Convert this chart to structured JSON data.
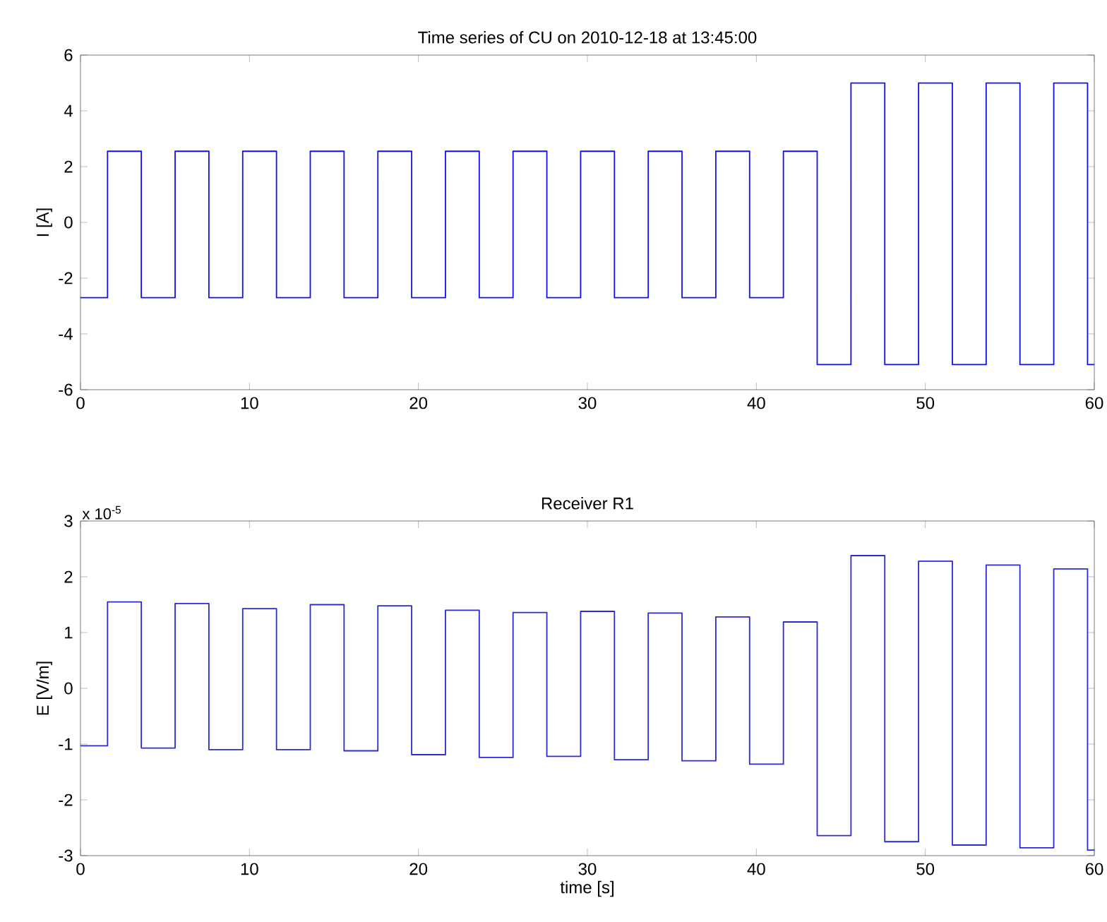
{
  "chart_data": [
    {
      "type": "line",
      "title": "Time series of CU on 2010-12-18 at 13:45:00",
      "ylabel": "I [A]",
      "color": "#1010f0",
      "x": [
        0,
        1.6,
        1.6,
        3.6,
        3.6,
        5.6,
        5.6,
        7.6,
        7.6,
        9.6,
        9.6,
        11.6,
        11.6,
        13.6,
        13.6,
        15.6,
        15.6,
        17.6,
        17.6,
        19.6,
        19.6,
        21.6,
        21.6,
        23.6,
        23.6,
        25.6,
        25.6,
        27.6,
        27.6,
        29.6,
        29.6,
        31.6,
        31.6,
        33.6,
        33.6,
        35.6,
        35.6,
        37.6,
        37.6,
        39.6,
        39.6,
        41.6,
        41.6,
        43.6,
        43.6,
        45.6,
        45.6,
        47.6,
        47.6,
        49.6,
        49.6,
        51.6,
        51.6,
        53.6,
        53.6,
        55.6,
        55.6,
        57.6,
        57.6,
        59.6,
        59.6,
        60
      ],
      "values": [
        -2.7,
        -2.7,
        2.55,
        2.55,
        -2.7,
        -2.7,
        2.55,
        2.55,
        -2.7,
        -2.7,
        2.55,
        2.55,
        -2.7,
        -2.7,
        2.55,
        2.55,
        -2.7,
        -2.7,
        2.55,
        2.55,
        -2.7,
        -2.7,
        2.55,
        2.55,
        -2.7,
        -2.7,
        2.55,
        2.55,
        -2.7,
        -2.7,
        2.55,
        2.55,
        -2.7,
        -2.7,
        2.55,
        2.55,
        -2.7,
        -2.7,
        2.55,
        2.55,
        -2.7,
        -2.7,
        2.55,
        2.55,
        -5.1,
        -5.1,
        5,
        5,
        -5.1,
        -5.1,
        5,
        5,
        -5.1,
        -5.1,
        5,
        5,
        -5.1,
        -5.1,
        5,
        5,
        -5.1,
        -5.1
      ],
      "xlim": [
        0,
        60
      ],
      "ylim": [
        -6,
        6
      ],
      "xticks": [
        0,
        10,
        20,
        30,
        40,
        50,
        60
      ],
      "yticks": [
        -6,
        -4,
        -2,
        0,
        2,
        4,
        6
      ],
      "grid": false,
      "marker": "none",
      "line_style": "solid"
    },
    {
      "type": "line",
      "title": "Receiver R1",
      "xlabel": "time [s]",
      "ylabel": "E [V/m]",
      "color": "#2a2ad8",
      "annotations": [
        "x 10$^{-5}$"
      ],
      "x": [
        0,
        1.6,
        1.6,
        3.6,
        3.6,
        5.6,
        5.6,
        7.6,
        7.6,
        9.6,
        9.6,
        11.6,
        11.6,
        13.6,
        13.6,
        15.6,
        15.6,
        17.6,
        17.6,
        19.6,
        19.6,
        21.6,
        21.6,
        23.6,
        23.6,
        25.6,
        25.6,
        27.6,
        27.6,
        29.6,
        29.6,
        31.6,
        31.6,
        33.6,
        33.6,
        35.6,
        35.6,
        37.6,
        37.6,
        39.6,
        39.6,
        41.6,
        41.6,
        43.6,
        43.6,
        45.6,
        45.6,
        47.6,
        47.6,
        49.6,
        49.6,
        51.6,
        51.6,
        53.6,
        53.6,
        55.6,
        55.6,
        57.6,
        57.6,
        59.6,
        59.6,
        60
      ],
      "values": [
        -1.03,
        -1.03,
        1.55,
        1.55,
        -1.07,
        -1.07,
        1.52,
        1.52,
        -1.1,
        -1.1,
        1.43,
        1.43,
        -1.1,
        -1.1,
        1.5,
        1.5,
        -1.12,
        -1.12,
        1.48,
        1.48,
        -1.19,
        -1.19,
        1.4,
        1.4,
        -1.24,
        -1.24,
        1.36,
        1.36,
        -1.22,
        -1.22,
        1.38,
        1.38,
        -1.28,
        -1.28,
        1.35,
        1.35,
        -1.3,
        -1.3,
        1.28,
        1.28,
        -1.36,
        -1.36,
        1.19,
        1.19,
        -2.64,
        -2.64,
        2.38,
        2.38,
        -2.75,
        -2.75,
        2.28,
        2.28,
        -2.81,
        -2.81,
        2.21,
        2.21,
        -2.86,
        -2.86,
        2.14,
        2.14,
        -2.9,
        -2.9
      ],
      "xlim": [
        0,
        60
      ],
      "ylim": [
        -3,
        3
      ],
      "xticks": [
        0,
        10,
        20,
        30,
        40,
        50,
        60
      ],
      "yticks": [
        -3,
        -2,
        -1,
        0,
        1,
        2,
        3
      ],
      "grid": false,
      "marker": "none",
      "line_style": "solid"
    }
  ]
}
